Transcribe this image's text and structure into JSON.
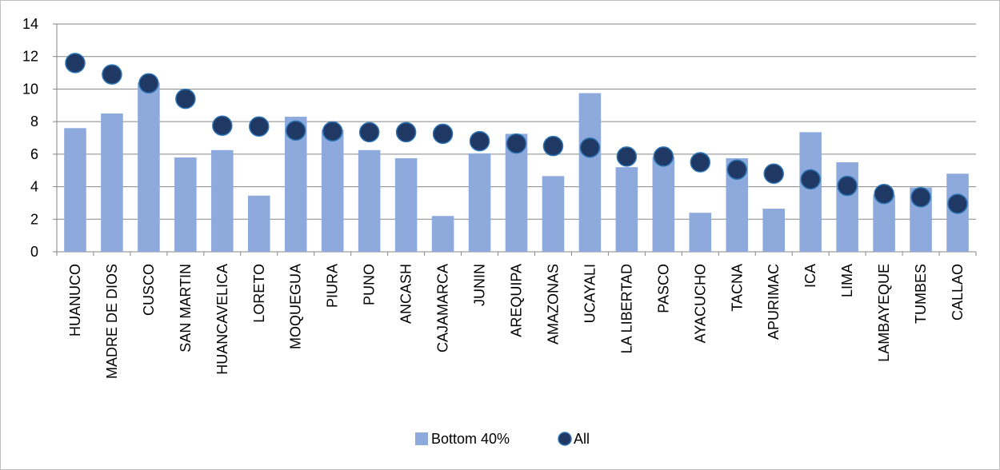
{
  "chart_data": {
    "type": "bar",
    "categories": [
      "HUANUCO",
      "MADRE DE DIOS",
      "CUSCO",
      "SAN MARTIN",
      "HUANCAVELICA",
      "LORETO",
      "MOQUEGUA",
      "PIURA",
      "PUNO",
      "ANCASH",
      "CAJAMARCA",
      "JUNIN",
      "AREQUIPA",
      "AMAZONAS",
      "UCAYALI",
      "LA LIBERTAD",
      "PASCO",
      "AYACUCHO",
      "TACNA",
      "APURIMAC",
      "ICA",
      "LIMA",
      "LAMBAYEQUE",
      "TUMBES",
      "CALLAO"
    ],
    "series": [
      {
        "name": "Bottom 40%",
        "kind": "bar",
        "color": "#8eaadc",
        "values": [
          7.6,
          8.5,
          10.4,
          5.8,
          6.25,
          3.45,
          8.3,
          7.5,
          6.25,
          5.75,
          2.2,
          6.05,
          7.25,
          4.65,
          9.75,
          5.2,
          5.85,
          2.4,
          5.75,
          2.65,
          7.35,
          5.5,
          3.5,
          3.95,
          4.8
        ]
      },
      {
        "name": "All",
        "kind": "marker",
        "color": "#1f3864",
        "values": [
          11.6,
          10.9,
          10.35,
          9.4,
          7.75,
          7.7,
          7.45,
          7.4,
          7.35,
          7.35,
          7.25,
          6.8,
          6.65,
          6.5,
          6.4,
          5.85,
          5.85,
          5.5,
          5.05,
          4.8,
          4.45,
          4.05,
          3.55,
          3.35,
          2.95
        ]
      }
    ],
    "ylim": [
      0,
      14
    ],
    "yticks": [
      "0",
      "2",
      "4",
      "6",
      "8",
      "10",
      "12",
      "14"
    ],
    "grid": true,
    "legend_position": "bottom"
  }
}
